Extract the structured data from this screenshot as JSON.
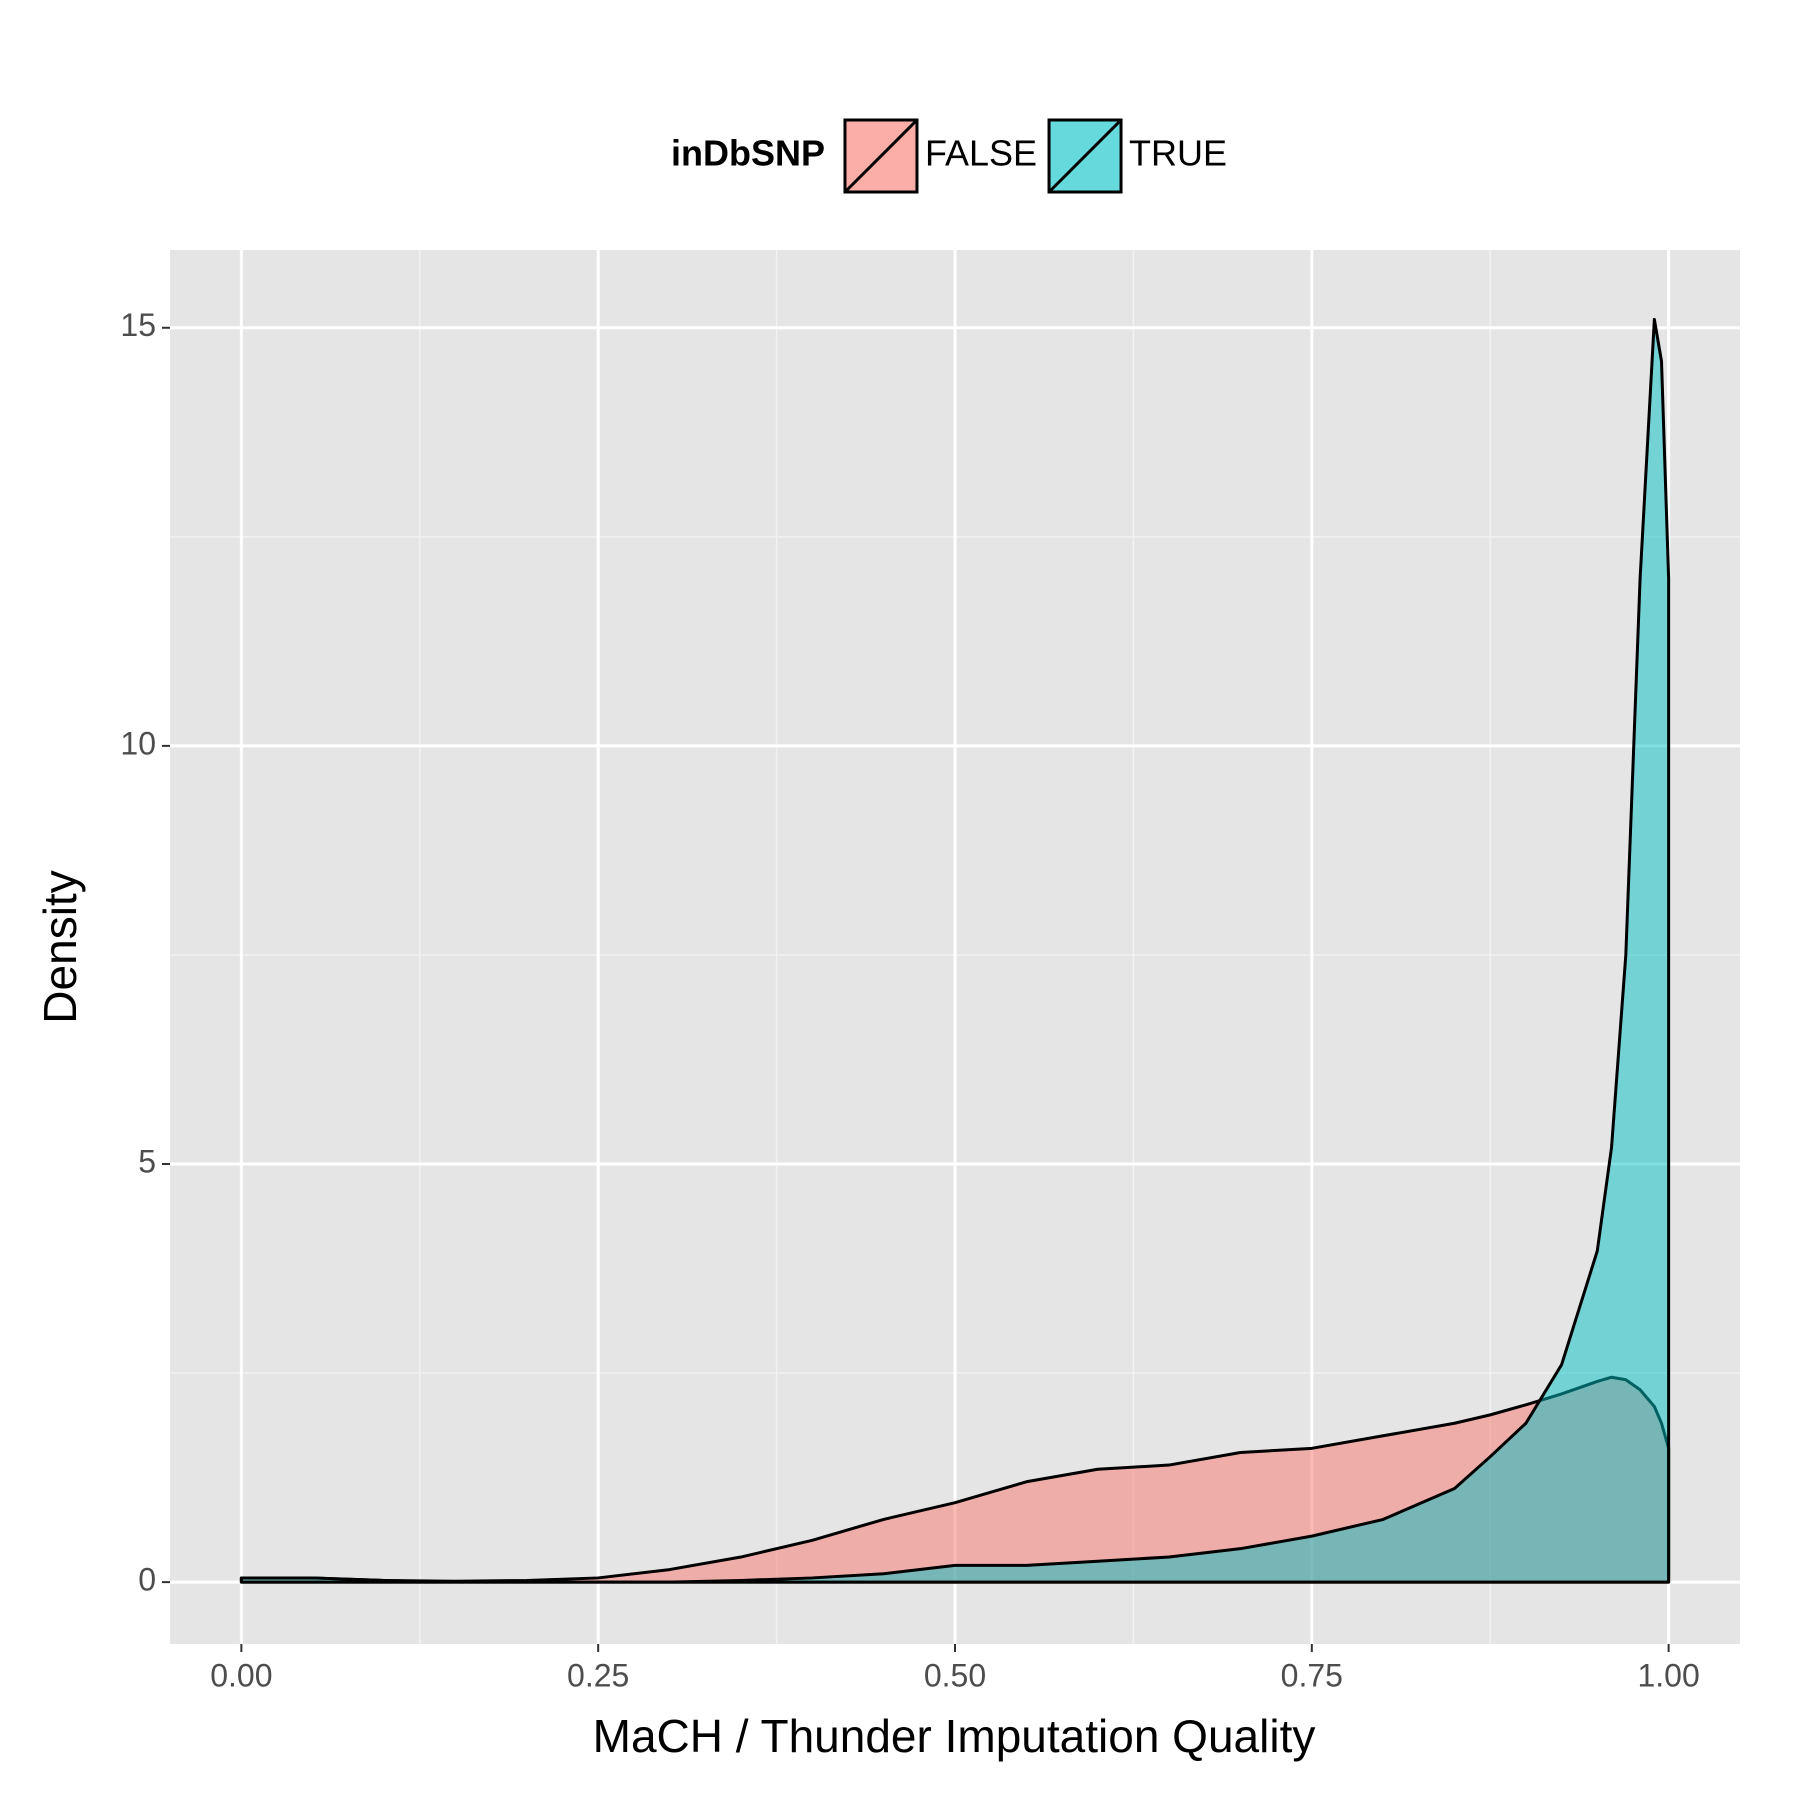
{
  "chart_data": {
    "type": "area",
    "x_label": "MaCH / Thunder Imputation Quality",
    "y_label": "Density",
    "legend_title": "inDbSNP",
    "legend_position": "top",
    "x": [
      0,
      0.05,
      0.1,
      0.15,
      0.2,
      0.25,
      0.3,
      0.35,
      0.4,
      0.45,
      0.5,
      0.55,
      0.6,
      0.65,
      0.7,
      0.75,
      0.8,
      0.85,
      0.875,
      0.9,
      0.925,
      0.95,
      0.96,
      0.97,
      0.98,
      0.99,
      0.995,
      1.0
    ],
    "series": [
      {
        "name": "FALSE",
        "color": "#F8766D",
        "values": [
          0.05,
          0.05,
          0.02,
          0.01,
          0.02,
          0.05,
          0.15,
          0.3,
          0.5,
          0.75,
          0.95,
          1.2,
          1.35,
          1.4,
          1.55,
          1.6,
          1.75,
          1.9,
          2.0,
          2.12,
          2.25,
          2.4,
          2.45,
          2.42,
          2.3,
          2.1,
          1.9,
          1.6
        ]
      },
      {
        "name": "TRUE",
        "color": "#00BFC4",
        "values": [
          0.05,
          0.05,
          0.02,
          0,
          0,
          0,
          0,
          0.02,
          0.05,
          0.1,
          0.2,
          0.2,
          0.25,
          0.3,
          0.4,
          0.55,
          0.75,
          1.12,
          1.5,
          1.9,
          2.6,
          3.96,
          5.2,
          7.5,
          12,
          15.1,
          14.6,
          12
        ]
      }
    ],
    "xlim": [
      -0.05,
      1.05
    ],
    "ylim": [
      -0.74,
      15.93
    ],
    "xticks": [
      {
        "value": 0,
        "label": "0.00"
      },
      {
        "value": 0.25,
        "label": "0.25"
      },
      {
        "value": 0.5,
        "label": "0.50"
      },
      {
        "value": 0.75,
        "label": "0.75"
      },
      {
        "value": 1,
        "label": "1.00"
      }
    ],
    "yticks": [
      0,
      5,
      10,
      15
    ],
    "grid": true
  }
}
